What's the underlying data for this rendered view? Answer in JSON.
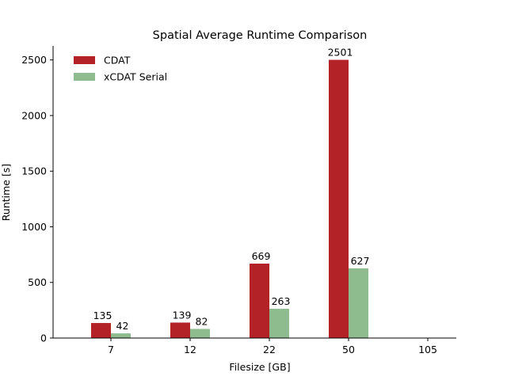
{
  "chart_data": {
    "type": "bar",
    "title": "Spatial Average Runtime Comparison",
    "xlabel": "Filesize [GB]",
    "ylabel": "Runtime [s]",
    "categories": [
      "7",
      "12",
      "22",
      "50",
      "105"
    ],
    "ylim": [
      0,
      2626
    ],
    "yticks": [
      0,
      500,
      1000,
      1500,
      2000,
      2500
    ],
    "grid": false,
    "legend_position": "top-left",
    "series": [
      {
        "name": "CDAT",
        "color": "#b22226",
        "values": [
          135,
          139,
          669,
          2501,
          null
        ],
        "labels": [
          "135",
          "139",
          "669",
          "2501",
          ""
        ]
      },
      {
        "name": "xCDAT Serial",
        "color": "#8fbc8f",
        "values": [
          42,
          82,
          263,
          627,
          null
        ],
        "labels": [
          "42",
          "82",
          "263",
          "627",
          ""
        ]
      }
    ]
  }
}
